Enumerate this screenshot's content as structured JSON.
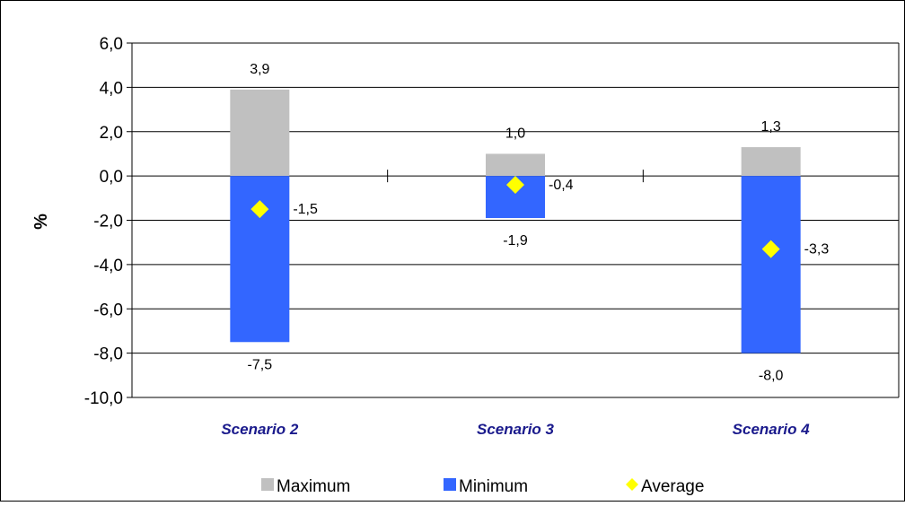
{
  "chart_data": {
    "type": "bar",
    "categories": [
      "Scenario 2",
      "Scenario 3",
      "Scenario 4"
    ],
    "series": [
      {
        "name": "Maximum",
        "values": [
          3.9,
          1.0,
          1.3
        ],
        "color": "#c0c0c0",
        "labels": [
          "3,9",
          "1,0",
          "1,3"
        ]
      },
      {
        "name": "Minimum",
        "values": [
          -7.5,
          -1.9,
          -8.0
        ],
        "color": "#3366ff",
        "labels": [
          "-7,5",
          "-1,9",
          "-8,0"
        ]
      },
      {
        "name": "Average",
        "values": [
          -1.5,
          -0.4,
          -3.3
        ],
        "color": "#ffff00",
        "marker": "diamond",
        "labels": [
          "-1,5",
          "-0,4",
          "-3,3"
        ]
      }
    ],
    "ylabel": "%",
    "ylim": [
      -10,
      6
    ],
    "yticks": [
      6,
      4,
      2,
      0,
      -2,
      -4,
      -6,
      -8,
      -10
    ],
    "ytick_labels": [
      "6,0",
      "4,0",
      "2,0",
      "0,0",
      "-2,0",
      "-4,0",
      "-6,0",
      "-8,0",
      "-10,0"
    ],
    "grid": true,
    "legend": "bottom"
  }
}
